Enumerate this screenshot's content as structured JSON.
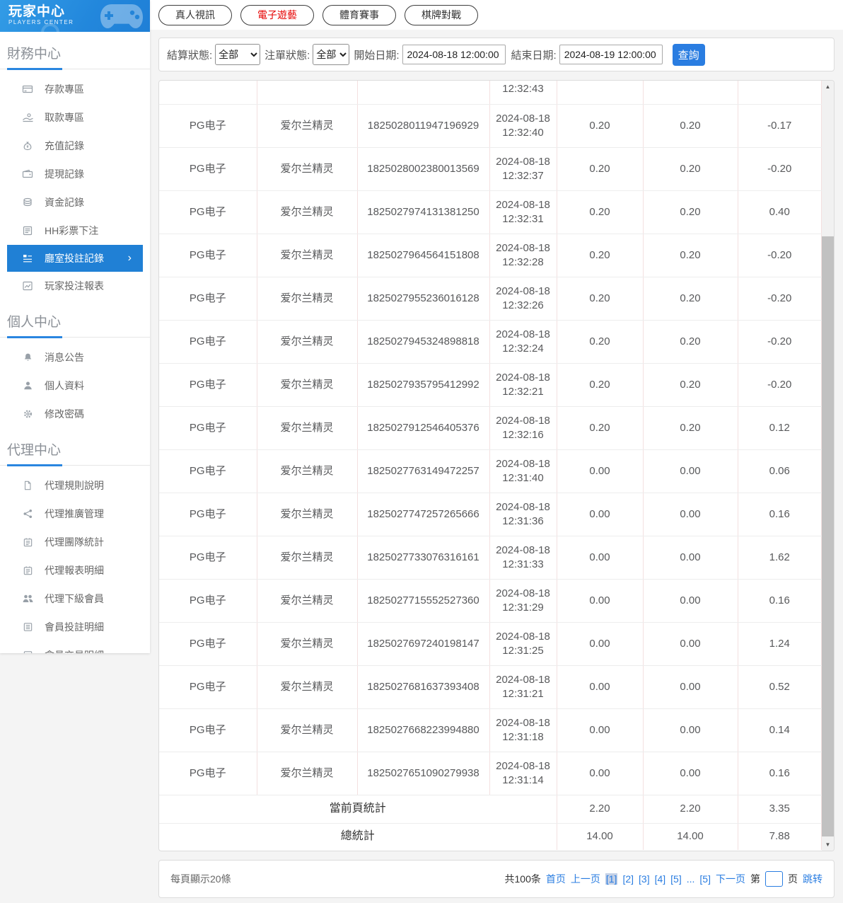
{
  "colors": {
    "sidebar_active_blue": "#2080d5",
    "accent_blue": "#2a7de1",
    "active_tab_red": "#e60000",
    "table_vertical_border": "#f3e0e0",
    "current_page_highlight": "#c3d0e6"
  },
  "sidebar": {
    "logo": {
      "title": "玩家中心",
      "subtitle": "PLAYERS CENTER"
    },
    "sections": [
      {
        "title": "財務中心",
        "items": [
          {
            "icon": "bank-card-icon",
            "label": "存款專區"
          },
          {
            "icon": "hand-coin-icon",
            "label": "取款專區"
          },
          {
            "icon": "money-bag-icon",
            "label": "充值記錄"
          },
          {
            "icon": "wallet-icon",
            "label": "提現記錄"
          },
          {
            "icon": "coins-icon",
            "label": "資金記錄"
          },
          {
            "icon": "lottery-list-icon",
            "label": "HH彩票下注"
          },
          {
            "icon": "grid-list-icon",
            "label": "廳室投註記錄",
            "active": true,
            "chevron": "›"
          },
          {
            "icon": "line-chart-icon",
            "label": "玩家投注報表"
          }
        ]
      },
      {
        "title": "個人中心",
        "items": [
          {
            "icon": "bell-icon",
            "label": "消息公告"
          },
          {
            "icon": "person-icon",
            "label": "個人資料"
          },
          {
            "icon": "gear-icon",
            "label": "修改密碼"
          }
        ]
      },
      {
        "title": "代理中心",
        "items": [
          {
            "icon": "document-icon",
            "label": "代理規則說明"
          },
          {
            "icon": "share-icon",
            "label": "代理推廣管理"
          },
          {
            "icon": "report-icon",
            "label": "代理團隊統計"
          },
          {
            "icon": "report-icon",
            "label": "代理報表明細"
          },
          {
            "icon": "people-icon",
            "label": "代理下級會員"
          },
          {
            "icon": "list-icon",
            "label": "會員投註明細"
          },
          {
            "icon": "list-icon",
            "label": "會員交易明細"
          }
        ]
      }
    ]
  },
  "tabs": [
    {
      "label": "真人視訊",
      "active": false
    },
    {
      "label": "電子遊藝",
      "active": true
    },
    {
      "label": "體育賽事",
      "active": false
    },
    {
      "label": "棋牌對戰",
      "active": false
    }
  ],
  "filters": {
    "settle_status_label": "結算狀態:",
    "settle_status_value": "全部",
    "order_status_label": "注單狀態:",
    "order_status_value": "全部",
    "start_date_label": "開始日期:",
    "start_date_value": "2024-08-18 12:00:00",
    "end_date_label": "結束日期:",
    "end_date_value": "2024-08-19 12:00:00",
    "search_button": "查詢"
  },
  "table": {
    "rows": [
      {
        "partial": true,
        "platform": "",
        "game": "",
        "order": "",
        "time": "12:32:43",
        "bet": "",
        "valid": "",
        "winloss": ""
      },
      {
        "platform": "PG电子",
        "game": "爱尔兰精灵",
        "order": "1825028011947196929",
        "time": "2024-08-18 12:32:40",
        "bet": "0.20",
        "valid": "0.20",
        "winloss": "-0.17"
      },
      {
        "platform": "PG电子",
        "game": "爱尔兰精灵",
        "order": "1825028002380013569",
        "time": "2024-08-18 12:32:37",
        "bet": "0.20",
        "valid": "0.20",
        "winloss": "-0.20"
      },
      {
        "platform": "PG电子",
        "game": "爱尔兰精灵",
        "order": "1825027974131381250",
        "time": "2024-08-18 12:32:31",
        "bet": "0.20",
        "valid": "0.20",
        "winloss": "0.40"
      },
      {
        "platform": "PG电子",
        "game": "爱尔兰精灵",
        "order": "1825027964564151808",
        "time": "2024-08-18 12:32:28",
        "bet": "0.20",
        "valid": "0.20",
        "winloss": "-0.20"
      },
      {
        "platform": "PG电子",
        "game": "爱尔兰精灵",
        "order": "1825027955236016128",
        "time": "2024-08-18 12:32:26",
        "bet": "0.20",
        "valid": "0.20",
        "winloss": "-0.20"
      },
      {
        "platform": "PG电子",
        "game": "爱尔兰精灵",
        "order": "1825027945324898818",
        "time": "2024-08-18 12:32:24",
        "bet": "0.20",
        "valid": "0.20",
        "winloss": "-0.20"
      },
      {
        "platform": "PG电子",
        "game": "爱尔兰精灵",
        "order": "1825027935795412992",
        "time": "2024-08-18 12:32:21",
        "bet": "0.20",
        "valid": "0.20",
        "winloss": "-0.20"
      },
      {
        "platform": "PG电子",
        "game": "爱尔兰精灵",
        "order": "1825027912546405376",
        "time": "2024-08-18 12:32:16",
        "bet": "0.20",
        "valid": "0.20",
        "winloss": "0.12"
      },
      {
        "platform": "PG电子",
        "game": "爱尔兰精灵",
        "order": "1825027763149472257",
        "time": "2024-08-18 12:31:40",
        "bet": "0.00",
        "valid": "0.00",
        "winloss": "0.06"
      },
      {
        "platform": "PG电子",
        "game": "爱尔兰精灵",
        "order": "1825027747257265666",
        "time": "2024-08-18 12:31:36",
        "bet": "0.00",
        "valid": "0.00",
        "winloss": "0.16"
      },
      {
        "platform": "PG电子",
        "game": "爱尔兰精灵",
        "order": "1825027733076316161",
        "time": "2024-08-18 12:31:33",
        "bet": "0.00",
        "valid": "0.00",
        "winloss": "1.62"
      },
      {
        "platform": "PG电子",
        "game": "爱尔兰精灵",
        "order": "1825027715552527360",
        "time": "2024-08-18 12:31:29",
        "bet": "0.00",
        "valid": "0.00",
        "winloss": "0.16"
      },
      {
        "platform": "PG电子",
        "game": "爱尔兰精灵",
        "order": "1825027697240198147",
        "time": "2024-08-18 12:31:25",
        "bet": "0.00",
        "valid": "0.00",
        "winloss": "1.24"
      },
      {
        "platform": "PG电子",
        "game": "爱尔兰精灵",
        "order": "1825027681637393408",
        "time": "2024-08-18 12:31:21",
        "bet": "0.00",
        "valid": "0.00",
        "winloss": "0.52"
      },
      {
        "platform": "PG电子",
        "game": "爱尔兰精灵",
        "order": "1825027668223994880",
        "time": "2024-08-18 12:31:18",
        "bet": "0.00",
        "valid": "0.00",
        "winloss": "0.14"
      },
      {
        "platform": "PG电子",
        "game": "爱尔兰精灵",
        "order": "1825027651090279938",
        "time": "2024-08-18 12:31:14",
        "bet": "0.00",
        "valid": "0.00",
        "winloss": "0.16"
      }
    ],
    "page_summary": {
      "label": "當前頁統計",
      "bet": "2.20",
      "valid": "2.20",
      "winloss": "3.35"
    },
    "total_summary": {
      "label": "總統計",
      "bet": "14.00",
      "valid": "14.00",
      "winloss": "7.88"
    }
  },
  "pagination": {
    "per_page_text": "每頁顯示20條",
    "total_text": "共100条",
    "first_label": "首页",
    "prev_label": "上一页",
    "pages": [
      {
        "label": "[1]",
        "current": true
      },
      {
        "label": "[2]"
      },
      {
        "label": "[3]"
      },
      {
        "label": "[4]"
      },
      {
        "label": "[5]"
      },
      {
        "label": "..."
      },
      {
        "label": "[5]"
      }
    ],
    "next_label": "下一页",
    "jump_prefix": "第",
    "jump_value": "",
    "jump_suffix": "页",
    "jump_button": "跳转"
  }
}
